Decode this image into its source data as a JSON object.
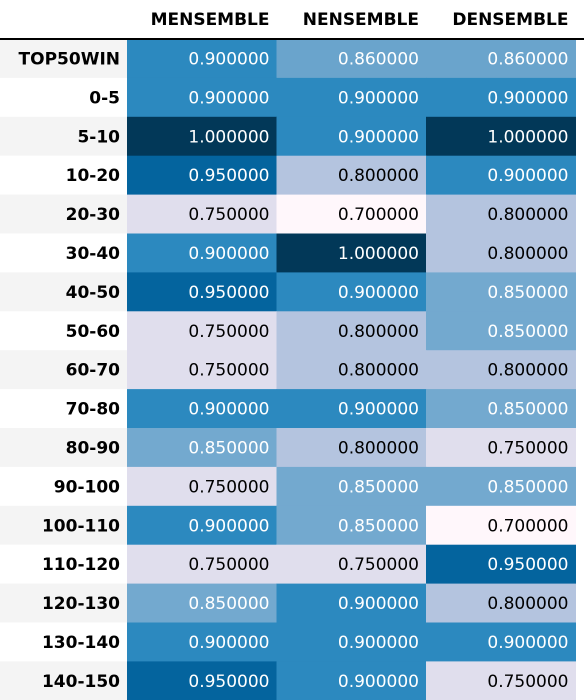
{
  "chart_data": {
    "type": "heatmap",
    "index_header": "",
    "columns": [
      "MENSEMBLE",
      "NENSEMBLE",
      "DENSEMBLE"
    ],
    "rows": [
      {
        "label": "TOP50WIN",
        "values": [
          0.9,
          0.86,
          0.86
        ]
      },
      {
        "label": "0-5",
        "values": [
          0.9,
          0.9,
          0.9
        ]
      },
      {
        "label": "5-10",
        "values": [
          1.0,
          0.9,
          1.0
        ]
      },
      {
        "label": "10-20",
        "values": [
          0.95,
          0.8,
          0.9
        ]
      },
      {
        "label": "20-30",
        "values": [
          0.75,
          0.7,
          0.8
        ]
      },
      {
        "label": "30-40",
        "values": [
          0.9,
          1.0,
          0.8
        ]
      },
      {
        "label": "40-50",
        "values": [
          0.95,
          0.9,
          0.85
        ]
      },
      {
        "label": "50-60",
        "values": [
          0.75,
          0.8,
          0.85
        ]
      },
      {
        "label": "60-70",
        "values": [
          0.75,
          0.8,
          0.8
        ]
      },
      {
        "label": "70-80",
        "values": [
          0.9,
          0.9,
          0.85
        ]
      },
      {
        "label": "80-90",
        "values": [
          0.85,
          0.8,
          0.75
        ]
      },
      {
        "label": "90-100",
        "values": [
          0.75,
          0.85,
          0.85
        ]
      },
      {
        "label": "100-110",
        "values": [
          0.9,
          0.85,
          0.7
        ]
      },
      {
        "label": "110-120",
        "values": [
          0.75,
          0.75,
          0.95
        ]
      },
      {
        "label": "120-130",
        "values": [
          0.85,
          0.9,
          0.8
        ]
      },
      {
        "label": "130-140",
        "values": [
          0.9,
          0.9,
          0.9
        ]
      },
      {
        "label": "140-150",
        "values": [
          0.95,
          0.9,
          0.75
        ]
      }
    ],
    "color_scale": {
      "0.70": "#fff7fb",
      "0.75": "#e0deed",
      "0.80": "#b4c4df",
      "0.85": "#73a9cf",
      "0.86": "#6aa4cc",
      "0.90": "#2c89bf",
      "0.95": "#04649e",
      "1.00": "#023858"
    },
    "dark_text_below": 0.85,
    "text_colors": {
      "light": "#ffffff",
      "dark": "#000000"
    },
    "index_stripe_colors": [
      "#f4f4f4",
      "#ffffff"
    ],
    "header_rule_color": "#000000",
    "decimals": 6
  }
}
